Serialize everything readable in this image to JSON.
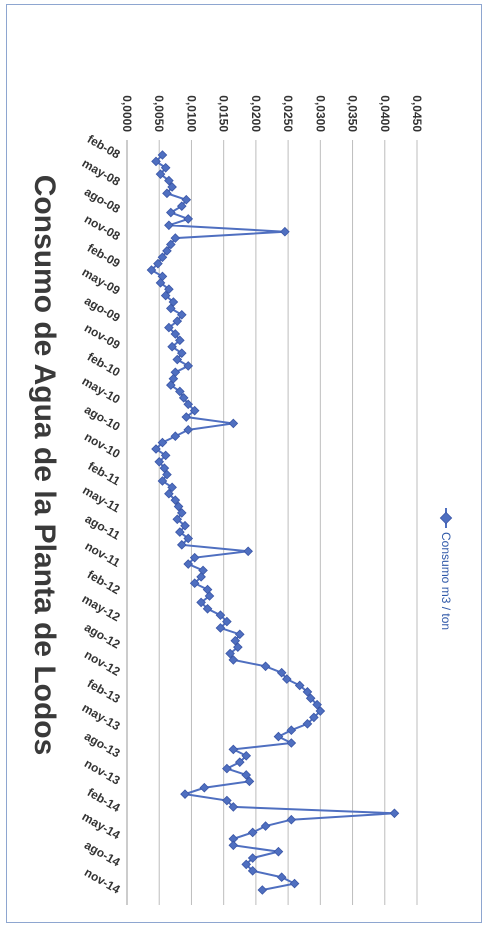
{
  "chart_data": {
    "type": "line",
    "title": "Consumo de Agua de la Planta de Lodos",
    "ylim": [
      0,
      0.045
    ],
    "yticks": [
      "0,0000",
      "0,0050",
      "0,0100",
      "0,0150",
      "0,0200",
      "0,0250",
      "0,0300",
      "0,0350",
      "0,0400",
      "0,0450"
    ],
    "xtick_labels": [
      "feb-08",
      "may-08",
      "ago-08",
      "nov-08",
      "feb-09",
      "may-09",
      "ago-09",
      "nov-09",
      "feb-10",
      "may-10",
      "ago-10",
      "nov-10",
      "feb-11",
      "may-11",
      "ago-11",
      "nov-11",
      "feb-12",
      "may-12",
      "ago-12",
      "nov-12",
      "feb-13",
      "may-13",
      "ago-13",
      "nov-13",
      "feb-14",
      "may-14",
      "ago-14",
      "nov-14"
    ],
    "grid": true,
    "legend_position": "bottom",
    "series": [
      {
        "name": "Consumo m3 / ton",
        "color": "#4f6fc0",
        "values": [
          0.0055,
          0.0045,
          0.006,
          0.0052,
          0.0065,
          0.007,
          0.0062,
          0.0092,
          0.0085,
          0.0068,
          0.0095,
          0.0065,
          0.0245,
          0.0075,
          0.0068,
          0.0062,
          0.0055,
          0.0048,
          0.0038,
          0.0055,
          0.0052,
          0.0065,
          0.006,
          0.0072,
          0.0068,
          0.0085,
          0.0078,
          0.0065,
          0.0075,
          0.0082,
          0.007,
          0.0085,
          0.0078,
          0.0095,
          0.0075,
          0.0072,
          0.0068,
          0.0082,
          0.0088,
          0.0095,
          0.0105,
          0.0092,
          0.0165,
          0.0095,
          0.0075,
          0.0055,
          0.0045,
          0.006,
          0.005,
          0.0058,
          0.0062,
          0.0055,
          0.007,
          0.0065,
          0.0075,
          0.008,
          0.0085,
          0.0078,
          0.009,
          0.0082,
          0.0095,
          0.0085,
          0.0188,
          0.0105,
          0.0095,
          0.0118,
          0.0115,
          0.0105,
          0.0125,
          0.0128,
          0.0115,
          0.0125,
          0.0145,
          0.0155,
          0.0145,
          0.0175,
          0.0168,
          0.0172,
          0.016,
          0.0165,
          0.0215,
          0.024,
          0.0248,
          0.0268,
          0.028,
          0.0285,
          0.0295,
          0.03,
          0.029,
          0.028,
          0.0255,
          0.0235,
          0.0255,
          0.0165,
          0.0185,
          0.0175,
          0.0155,
          0.0185,
          0.019,
          0.012,
          0.009,
          0.0155,
          0.0165,
          0.0415,
          0.0255,
          0.0215,
          0.0195,
          0.0165,
          0.0165,
          0.0235,
          0.0195,
          0.0185,
          0.0195,
          0.024,
          0.026,
          0.021
        ]
      }
    ]
  }
}
